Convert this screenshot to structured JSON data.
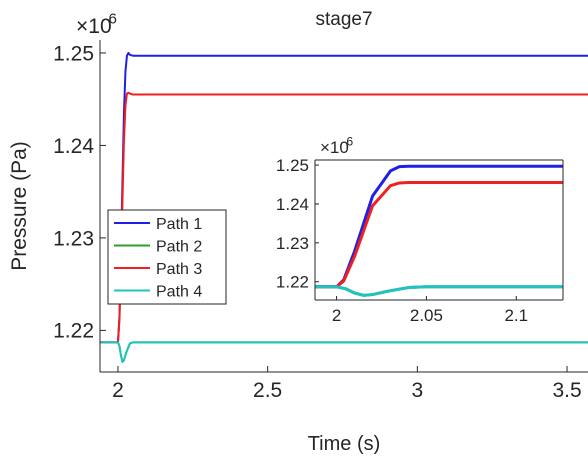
{
  "chart_data": [
    {
      "id": "main",
      "type": "line",
      "title": "stage7",
      "xlabel": "Time (s)",
      "ylabel": "Pressure (Pa)",
      "xlim": [
        1.94,
        3.57
      ],
      "ylim": [
        1.2155,
        1.2514
      ],
      "x_ticks": [
        2,
        2.5,
        3,
        3.5
      ],
      "x_tick_labels": [
        "2",
        "2.5",
        "3",
        "3.5"
      ],
      "y_ticks": [
        1.22,
        1.23,
        1.24,
        1.25
      ],
      "y_tick_labels": [
        "1.22",
        "1.23",
        "1.24",
        "1.25"
      ],
      "y_exponent_label": "×10",
      "y_exponent": "6",
      "grid": false,
      "legend": "middle-left",
      "series": [
        {
          "name": "Path 1",
          "color": "#1f1fe8",
          "x": [
            1.94,
            2.0,
            2.005,
            2.01,
            2.015,
            2.02,
            2.025,
            2.03,
            2.035,
            2.04,
            2.05,
            2.07,
            3.57
          ],
          "y": [
            1.2187,
            1.2187,
            1.2215,
            1.2285,
            1.236,
            1.2435,
            1.248,
            1.2497,
            1.25,
            1.2498,
            1.2497,
            1.2497,
            1.2497
          ]
        },
        {
          "name": "Path 2",
          "color": "#2ca02c",
          "x": [
            1.94,
            2.0,
            2.005,
            2.01,
            2.015,
            2.02,
            2.03,
            2.04,
            2.05,
            2.06,
            3.57
          ],
          "y": [
            1.2187,
            1.2187,
            1.2183,
            1.2173,
            1.2166,
            1.2168,
            1.2178,
            1.2186,
            1.2187,
            1.2187,
            1.2187
          ]
        },
        {
          "name": "Path 3",
          "color": "#ee2020",
          "x": [
            1.94,
            2.0,
            2.005,
            2.01,
            2.015,
            2.02,
            2.025,
            2.03,
            2.035,
            2.04,
            2.05,
            2.07,
            3.57
          ],
          "y": [
            1.2187,
            1.2187,
            1.2212,
            1.2275,
            1.234,
            1.2405,
            1.2443,
            1.2456,
            1.2457,
            1.2456,
            1.2455,
            1.2455,
            1.2455
          ]
        },
        {
          "name": "Path 4",
          "color": "#22c2c2",
          "x": [
            1.94,
            2.0,
            2.005,
            2.01,
            2.015,
            2.02,
            2.03,
            2.04,
            2.05,
            2.06,
            3.57
          ],
          "y": [
            1.2187,
            1.2187,
            1.2183,
            1.2173,
            1.2166,
            1.2168,
            1.2178,
            1.2186,
            1.2187,
            1.2187,
            1.2187
          ]
        }
      ]
    },
    {
      "id": "inset",
      "type": "line",
      "title": "",
      "xlabel": "",
      "ylabel": "",
      "xlim": [
        1.988,
        2.126
      ],
      "ylim": [
        1.2153,
        1.2513
      ],
      "x_ticks": [
        2,
        2.05,
        2.1
      ],
      "x_tick_labels": [
        "2",
        "2.05",
        "2.1"
      ],
      "y_ticks": [
        1.22,
        1.23,
        1.24,
        1.25
      ],
      "y_tick_labels": [
        "1.22",
        "1.23",
        "1.24",
        "1.25"
      ],
      "y_exponent_label": "×10",
      "y_exponent": "6",
      "grid": false,
      "legend": "none",
      "series": [
        {
          "name": "Path 1",
          "color": "#1f1fe8",
          "x": [
            1.988,
            2.0,
            2.004,
            2.01,
            2.02,
            2.03,
            2.035,
            2.04,
            2.05,
            2.07,
            2.126
          ],
          "y": [
            1.2187,
            1.2187,
            1.2205,
            1.2278,
            1.242,
            1.2485,
            1.2496,
            1.2497,
            1.2497,
            1.2497,
            1.2497
          ]
        },
        {
          "name": "Path 2",
          "color": "#2ca02c",
          "x": [
            1.988,
            2.0,
            2.005,
            2.01,
            2.015,
            2.02,
            2.03,
            2.04,
            2.05,
            2.07,
            2.126
          ],
          "y": [
            1.2187,
            1.2187,
            1.2182,
            1.2171,
            1.2165,
            1.2167,
            1.2177,
            1.2185,
            1.2187,
            1.2187,
            1.2187
          ]
        },
        {
          "name": "Path 3",
          "color": "#ee2020",
          "x": [
            1.988,
            2.0,
            2.004,
            2.01,
            2.02,
            2.03,
            2.035,
            2.04,
            2.05,
            2.07,
            2.126
          ],
          "y": [
            1.2187,
            1.2187,
            1.2202,
            1.2265,
            1.2395,
            1.2447,
            1.2454,
            1.2455,
            1.2455,
            1.2455,
            1.2455
          ]
        },
        {
          "name": "Path 4",
          "color": "#22c2c2",
          "x": [
            1.988,
            2.0,
            2.005,
            2.01,
            2.015,
            2.02,
            2.03,
            2.04,
            2.05,
            2.07,
            2.126
          ],
          "y": [
            1.2187,
            1.2187,
            1.2182,
            1.2171,
            1.2165,
            1.2167,
            1.2177,
            1.2185,
            1.2187,
            1.2187,
            1.2187
          ]
        }
      ]
    }
  ]
}
